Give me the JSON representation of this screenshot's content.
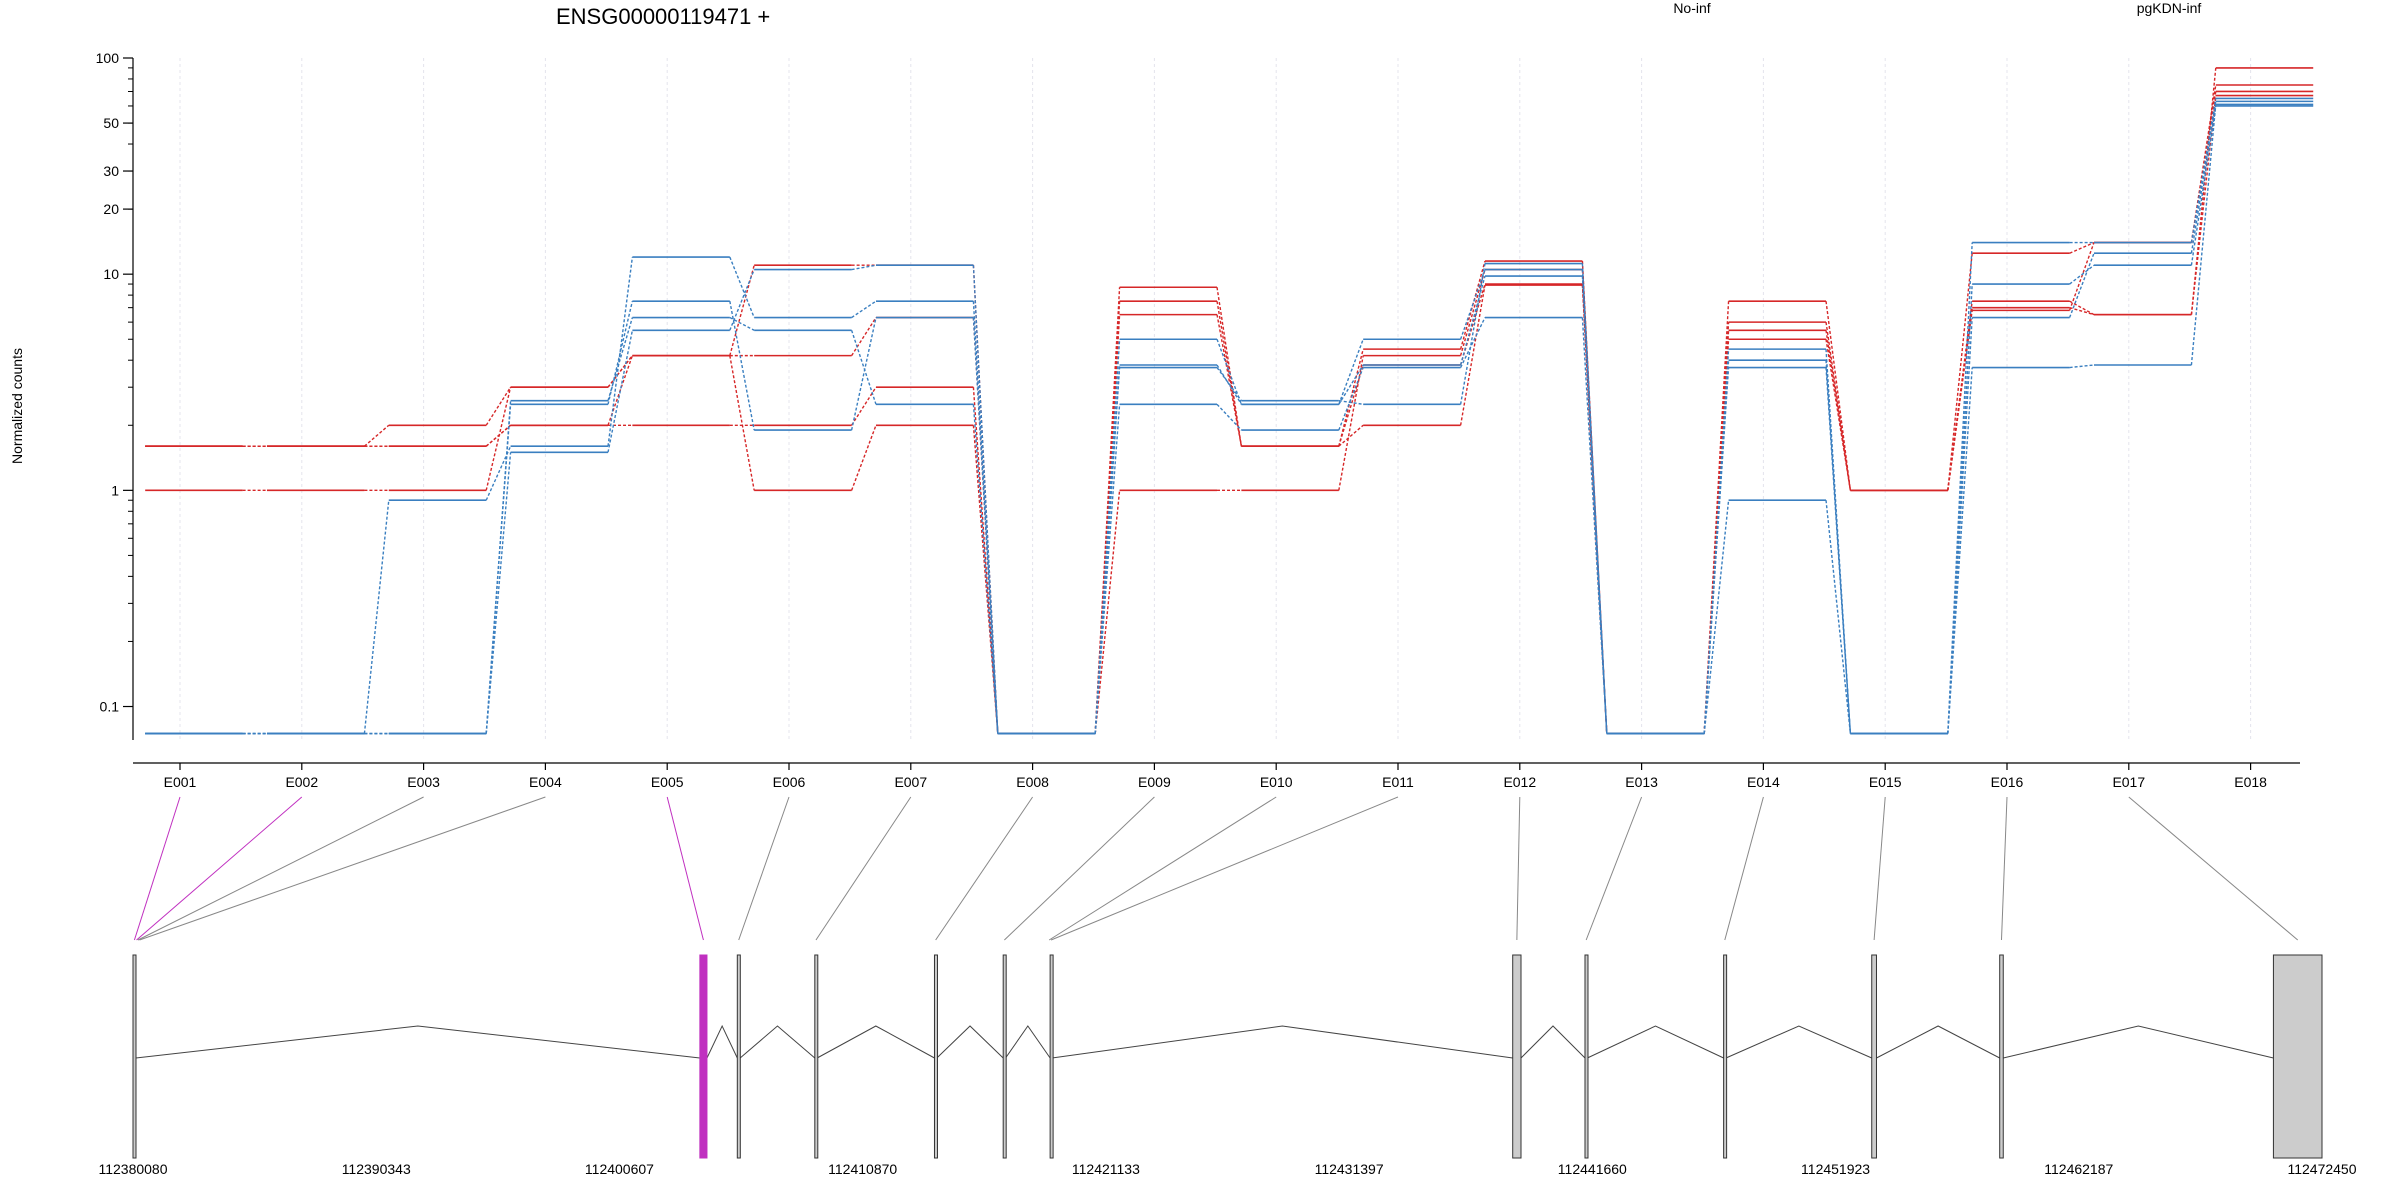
{
  "chart_data": {
    "type": "line",
    "title": "ENSG00000119471 +",
    "ylabel": "Normalized counts",
    "yscale": "log",
    "ylim": [
      0.07,
      100
    ],
    "yticks": [
      0.1,
      1,
      10,
      20,
      30,
      50,
      100
    ],
    "ytick_labels": [
      "0.1",
      "1",
      "10",
      "20",
      "30",
      "50",
      "100"
    ],
    "categories": [
      "E001",
      "E002",
      "E003",
      "E004",
      "E005",
      "E006",
      "E007",
      "E008",
      "E009",
      "E010",
      "E011",
      "E012",
      "E013",
      "E014",
      "E015",
      "E016",
      "E017",
      "E018"
    ],
    "legend": [
      {
        "label": "No-inf",
        "color": "#d62728"
      },
      {
        "label": "pgKDN-inf",
        "color": "#3a7fc0"
      }
    ],
    "series": [
      {
        "group": "No-inf",
        "color": "#d62728",
        "values": [
          1.6,
          1.6,
          1.6,
          2.0,
          4.2,
          4.2,
          6.3,
          0.075,
          8.7,
          1.6,
          2.0,
          8.9,
          0.075,
          6.0,
          1.0,
          7.5,
          6.5,
          90
        ]
      },
      {
        "group": "No-inf",
        "color": "#d62728",
        "values": [
          1.6,
          1.6,
          2.0,
          3.0,
          4.2,
          11.0,
          11.0,
          0.075,
          7.5,
          1.6,
          4.5,
          11.5,
          0.075,
          7.5,
          1.0,
          12.5,
          14.0,
          75
        ]
      },
      {
        "group": "No-inf",
        "color": "#d62728",
        "values": [
          1.0,
          1.0,
          1.0,
          3.0,
          4.2,
          1.0,
          2.0,
          0.075,
          1.0,
          1.0,
          4.2,
          10.5,
          0.075,
          5.0,
          1.0,
          6.8,
          14.0,
          70
        ]
      },
      {
        "group": "No-inf",
        "color": "#d62728",
        "values": [
          1.6,
          1.6,
          1.6,
          2.0,
          2.0,
          2.0,
          3.0,
          0.075,
          6.5,
          1.6,
          3.8,
          9.0,
          0.075,
          5.5,
          1.0,
          7.0,
          6.5,
          67
        ]
      },
      {
        "group": "pgKDN-inf",
        "color": "#3a7fc0",
        "values": [
          0.075,
          0.075,
          0.9,
          1.6,
          12.0,
          6.3,
          7.5,
          0.075,
          5.0,
          2.5,
          5.0,
          10.5,
          0.075,
          4.0,
          0.075,
          14.0,
          14.0,
          65
        ]
      },
      {
        "group": "pgKDN-inf",
        "color": "#3a7fc0",
        "values": [
          0.075,
          0.075,
          0.075,
          2.5,
          7.5,
          1.9,
          6.3,
          0.075,
          3.8,
          2.5,
          3.8,
          9.8,
          0.075,
          4.5,
          0.075,
          6.3,
          12.5,
          63
        ]
      },
      {
        "group": "pgKDN-inf",
        "color": "#3a7fc0",
        "values": [
          0.075,
          0.075,
          0.075,
          2.6,
          6.3,
          5.5,
          2.5,
          0.075,
          2.5,
          1.9,
          3.7,
          6.3,
          0.075,
          3.7,
          0.075,
          3.7,
          3.8,
          61
        ]
      },
      {
        "group": "pgKDN-inf",
        "color": "#3a7fc0",
        "values": [
          0.075,
          0.075,
          0.075,
          1.5,
          5.5,
          10.5,
          11.0,
          0.075,
          3.7,
          2.6,
          2.5,
          11.2,
          0.075,
          0.9,
          0.075,
          9.0,
          11.0,
          60
        ]
      }
    ],
    "gene_model": {
      "coord_ticks": [
        "112380080",
        "112390343",
        "112400607",
        "112410870",
        "112421133",
        "112431397",
        "112441660",
        "112451923",
        "112462187",
        "112472450"
      ],
      "coord_range": [
        112380080,
        112472450
      ],
      "highlight_color": "#c030c0",
      "exons": [
        {
          "id": "E001",
          "start": 112380080,
          "end": 112380200,
          "highlight": true
        },
        {
          "id": "E002",
          "start": 112380200,
          "end": 112380260,
          "highlight": true
        },
        {
          "id": "E003",
          "start": 112380260,
          "end": 112380320,
          "highlight": false
        },
        {
          "id": "E004",
          "start": 112380320,
          "end": 112380390,
          "highlight": false
        },
        {
          "id": "E005",
          "start": 112404000,
          "end": 112404300,
          "highlight": true
        },
        {
          "id": "E006",
          "start": 112405580,
          "end": 112405700,
          "highlight": false
        },
        {
          "id": "E007",
          "start": 112408850,
          "end": 112408950,
          "highlight": false
        },
        {
          "id": "E008",
          "start": 112413900,
          "end": 112414000,
          "highlight": false
        },
        {
          "id": "E009",
          "start": 112416800,
          "end": 112416900,
          "highlight": false
        },
        {
          "id": "E010",
          "start": 112418700,
          "end": 112418780,
          "highlight": false
        },
        {
          "id": "E011",
          "start": 112418780,
          "end": 112418860,
          "highlight": false
        },
        {
          "id": "E012",
          "start": 112438300,
          "end": 112438650,
          "highlight": false
        },
        {
          "id": "E013",
          "start": 112441350,
          "end": 112441450,
          "highlight": false
        },
        {
          "id": "E014",
          "start": 112447200,
          "end": 112447300,
          "highlight": false
        },
        {
          "id": "E015",
          "start": 112453450,
          "end": 112453650,
          "highlight": false
        },
        {
          "id": "E016",
          "start": 112458850,
          "end": 112459000,
          "highlight": false
        },
        {
          "id": "E017",
          "start": 112470400,
          "end": 112472450,
          "highlight": false
        }
      ],
      "exon_boxes": [
        [
          112380080,
          112380200
        ],
        [
          112404000,
          112404300
        ],
        [
          112405580,
          112405700
        ],
        [
          112408850,
          112408950
        ],
        [
          112413900,
          112414000
        ],
        [
          112416800,
          112416900
        ],
        [
          112418780,
          112418860
        ],
        [
          112438300,
          112438650
        ],
        [
          112441350,
          112441450
        ],
        [
          112447200,
          112447300
        ],
        [
          112453450,
          112453650
        ],
        [
          112458850,
          112459000
        ],
        [
          112470400,
          112472450
        ]
      ]
    }
  }
}
